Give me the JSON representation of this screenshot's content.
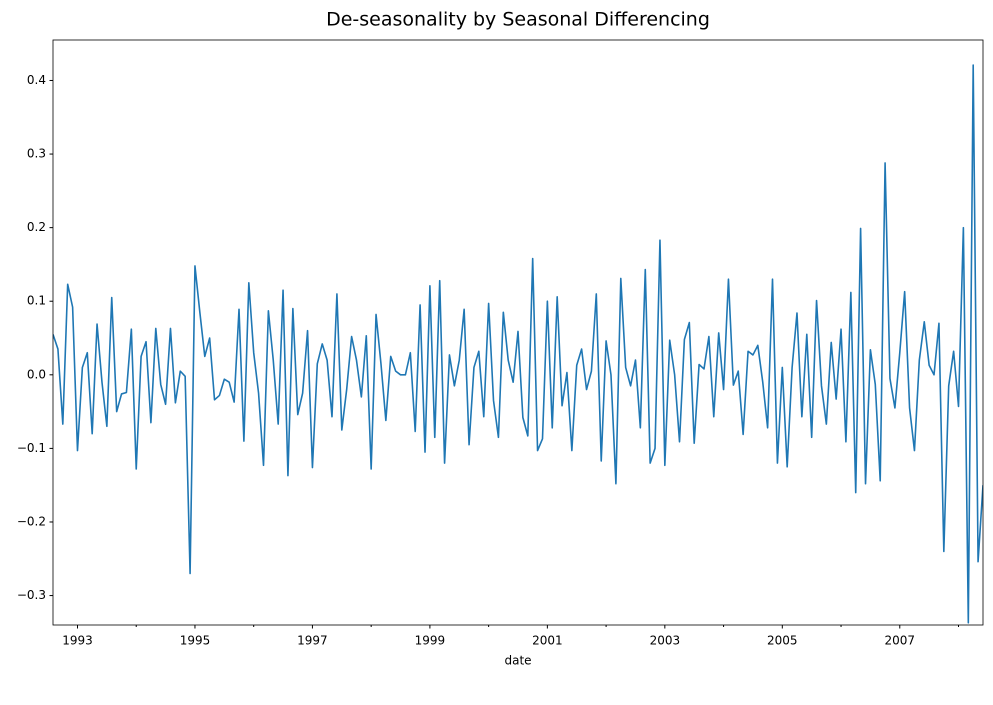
{
  "chart_data": {
    "type": "line",
    "title": "De-seasonality by Seasonal Differencing",
    "xlabel": "date",
    "x": [
      1992.583,
      1992.667,
      1992.75,
      1992.833,
      1992.917,
      1993,
      1993.083,
      1993.167,
      1993.25,
      1993.333,
      1993.417,
      1993.5,
      1993.583,
      1993.667,
      1993.75,
      1993.833,
      1993.917,
      1994,
      1994.083,
      1994.167,
      1994.25,
      1994.333,
      1994.417,
      1994.5,
      1994.583,
      1994.667,
      1994.75,
      1994.833,
      1994.917,
      1995,
      1995.083,
      1995.167,
      1995.25,
      1995.333,
      1995.417,
      1995.5,
      1995.583,
      1995.667,
      1995.75,
      1995.833,
      1995.917,
      1996,
      1996.083,
      1996.167,
      1996.25,
      1996.333,
      1996.417,
      1996.5,
      1996.583,
      1996.667,
      1996.75,
      1996.833,
      1996.917,
      1997,
      1997.083,
      1997.167,
      1997.25,
      1997.333,
      1997.417,
      1997.5,
      1997.583,
      1997.667,
      1997.75,
      1997.833,
      1997.917,
      1998,
      1998.083,
      1998.167,
      1998.25,
      1998.333,
      1998.417,
      1998.5,
      1998.583,
      1998.667,
      1998.75,
      1998.833,
      1998.917,
      1999,
      1999.083,
      1999.167,
      1999.25,
      1999.333,
      1999.417,
      1999.5,
      1999.583,
      1999.667,
      1999.75,
      1999.833,
      1999.917,
      2000,
      2000.083,
      2000.167,
      2000.25,
      2000.333,
      2000.417,
      2000.5,
      2000.583,
      2000.667,
      2000.75,
      2000.833,
      2000.917,
      2001,
      2001.083,
      2001.167,
      2001.25,
      2001.333,
      2001.417,
      2001.5,
      2001.583,
      2001.667,
      2001.75,
      2001.833,
      2001.917,
      2002,
      2002.083,
      2002.167,
      2002.25,
      2002.333,
      2002.417,
      2002.5,
      2002.583,
      2002.667,
      2002.75,
      2002.833,
      2002.917,
      2003,
      2003.083,
      2003.167,
      2003.25,
      2003.333,
      2003.417,
      2003.5,
      2003.583,
      2003.667,
      2003.75,
      2003.833,
      2003.917,
      2004,
      2004.083,
      2004.167,
      2004.25,
      2004.333,
      2004.417,
      2004.5,
      2004.583,
      2004.667,
      2004.75,
      2004.833,
      2004.917,
      2005,
      2005.083,
      2005.167,
      2005.25,
      2005.333,
      2005.417,
      2005.5,
      2005.583,
      2005.667,
      2005.75,
      2005.833,
      2005.917,
      2006,
      2006.083,
      2006.167,
      2006.25,
      2006.333,
      2006.417,
      2006.5,
      2006.583,
      2006.667,
      2006.75,
      2006.833,
      2006.917,
      2007,
      2007.083,
      2007.167,
      2007.25,
      2007.333,
      2007.417,
      2007.5,
      2007.583,
      2007.667,
      2007.75,
      2007.833,
      2007.917,
      2008,
      2008.083,
      2008.167,
      2008.25,
      2008.333,
      2008.417
    ],
    "series": [
      {
        "color": "#1f77b4",
        "values": [
          0.055,
          0.035,
          -0.067,
          0.123,
          0.092,
          -0.103,
          0.01,
          0.03,
          -0.08,
          0.069,
          -0.01,
          -0.07,
          0.105,
          -0.05,
          -0.026,
          -0.024,
          0.062,
          -0.128,
          0.025,
          0.045,
          -0.065,
          0.063,
          -0.013,
          -0.04,
          0.063,
          -0.038,
          0.005,
          -0.002,
          -0.27,
          0.148,
          0.085,
          0.025,
          0.05,
          -0.034,
          -0.028,
          -0.006,
          -0.01,
          -0.037,
          0.089,
          -0.09,
          0.125,
          0.03,
          -0.025,
          -0.123,
          0.087,
          0.02,
          -0.067,
          0.115,
          -0.137,
          0.09,
          -0.054,
          -0.025,
          0.06,
          -0.126,
          0.015,
          0.042,
          0.02,
          -0.057,
          0.11,
          -0.075,
          -0.02,
          0.052,
          0.02,
          -0.03,
          0.053,
          -0.128,
          0.082,
          0.015,
          -0.062,
          0.025,
          0.005,
          0.0,
          0.0,
          0.03,
          -0.077,
          0.095,
          -0.105,
          0.121,
          -0.085,
          0.128,
          -0.12,
          0.027,
          -0.015,
          0.02,
          0.089,
          -0.095,
          0.01,
          0.032,
          -0.057,
          0.097,
          -0.035,
          -0.085,
          0.085,
          0.02,
          -0.01,
          0.059,
          -0.058,
          -0.083,
          0.158,
          -0.103,
          -0.087,
          0.1,
          -0.072,
          0.106,
          -0.042,
          0.003,
          -0.103,
          0.013,
          0.035,
          -0.02,
          0.005,
          0.11,
          -0.117,
          0.046,
          0.0,
          -0.148,
          0.131,
          0.01,
          -0.015,
          0.02,
          -0.072,
          0.143,
          -0.12,
          -0.1,
          0.183,
          -0.123,
          0.047,
          0.0,
          -0.091,
          0.048,
          0.071,
          -0.093,
          0.014,
          0.008,
          0.052,
          -0.057,
          0.057,
          -0.02,
          0.13,
          -0.014,
          0.005,
          -0.081,
          0.032,
          0.027,
          0.04,
          -0.01,
          -0.072,
          0.13,
          -0.12,
          0.01,
          -0.125,
          0.01,
          0.084,
          -0.057,
          0.055,
          -0.085,
          0.101,
          -0.015,
          -0.067,
          0.044,
          -0.033,
          0.062,
          -0.091,
          0.112,
          -0.16,
          0.199,
          -0.148,
          0.034,
          -0.013,
          -0.144,
          0.288,
          -0.005,
          -0.045,
          0.03,
          0.113,
          -0.045,
          -0.103,
          0.02,
          0.072,
          0.013,
          0.0,
          0.07,
          -0.24,
          -0.015,
          0.032,
          -0.043,
          0.2,
          -0.337,
          0.421,
          -0.254,
          -0.15
        ]
      }
    ],
    "xlim": [
      1992.583,
      2008.417
    ],
    "xticks": [
      1993,
      1995,
      1997,
      1999,
      2001,
      2003,
      2005,
      2007
    ],
    "xminorticks": [
      1994,
      1996,
      1998,
      2000,
      2002,
      2004,
      2006,
      2008
    ],
    "ylim": [
      -0.34,
      0.455
    ],
    "yticks": [
      {
        "value": -0.3,
        "label": "−0.3"
      },
      {
        "value": -0.2,
        "label": "−0.2"
      },
      {
        "value": -0.1,
        "label": "−0.1"
      },
      {
        "value": 0,
        "label": "0.0"
      },
      0.1,
      0.2,
      0.3,
      0.4
    ],
    "grid": false
  }
}
